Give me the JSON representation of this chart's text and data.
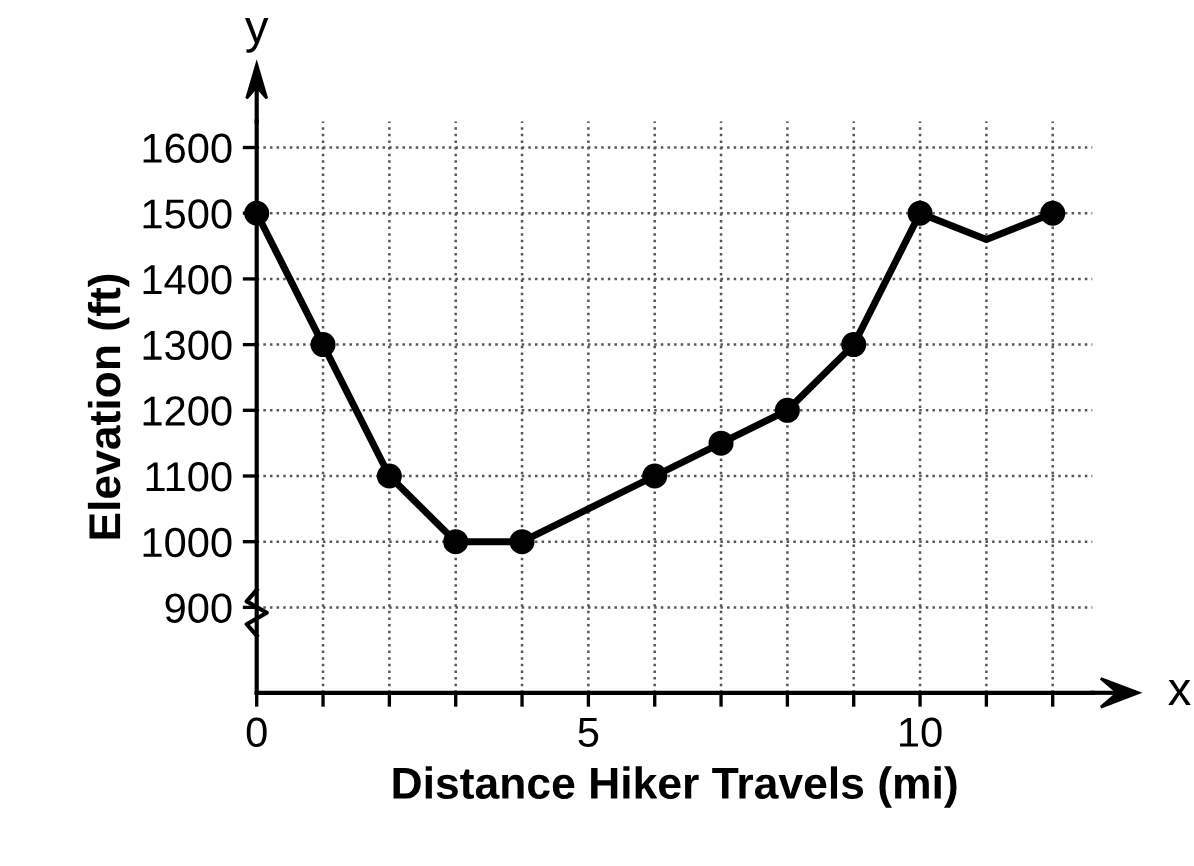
{
  "chart_data": {
    "type": "line",
    "xlabel": "Distance Hiker Travels (mi)",
    "ylabel": "Elevation (ft)",
    "annotations": [
      "x",
      "y"
    ],
    "series": [
      {
        "color": "#000000",
        "marker": "circle",
        "x": [
          0,
          1,
          2,
          3,
          4,
          6,
          7,
          8,
          9,
          10
        ],
        "values": [
          1500,
          1300,
          1100,
          1000,
          1000,
          1100,
          1150,
          1200,
          1300,
          1500
        ]
      },
      {
        "color": "#000000",
        "marker": "none",
        "x": [
          10,
          11,
          12
        ],
        "values": [
          1500,
          1460,
          1500
        ]
      },
      {
        "type": "scatter",
        "color": "#000000",
        "marker": "circle",
        "x": [
          12
        ],
        "values": [
          1500
        ]
      }
    ],
    "xlim": [
      0,
      12.6
    ],
    "ylim": [
      770,
      1640
    ],
    "xticks": [
      0,
      {
        "value": 1,
        "label": null
      },
      {
        "value": 2,
        "label": null
      },
      {
        "value": 3,
        "label": null
      },
      {
        "value": 4,
        "label": null
      },
      5,
      {
        "value": 6,
        "label": null
      },
      {
        "value": 7,
        "label": null
      },
      {
        "value": 8,
        "label": null
      },
      {
        "value": 9,
        "label": null
      },
      10,
      {
        "value": 11,
        "label": null
      },
      {
        "value": 12,
        "label": null
      }
    ],
    "yticks": [
      900,
      1000,
      1100,
      1200,
      1300,
      1400,
      1500,
      1600
    ],
    "grid": true,
    "legend": false
  }
}
